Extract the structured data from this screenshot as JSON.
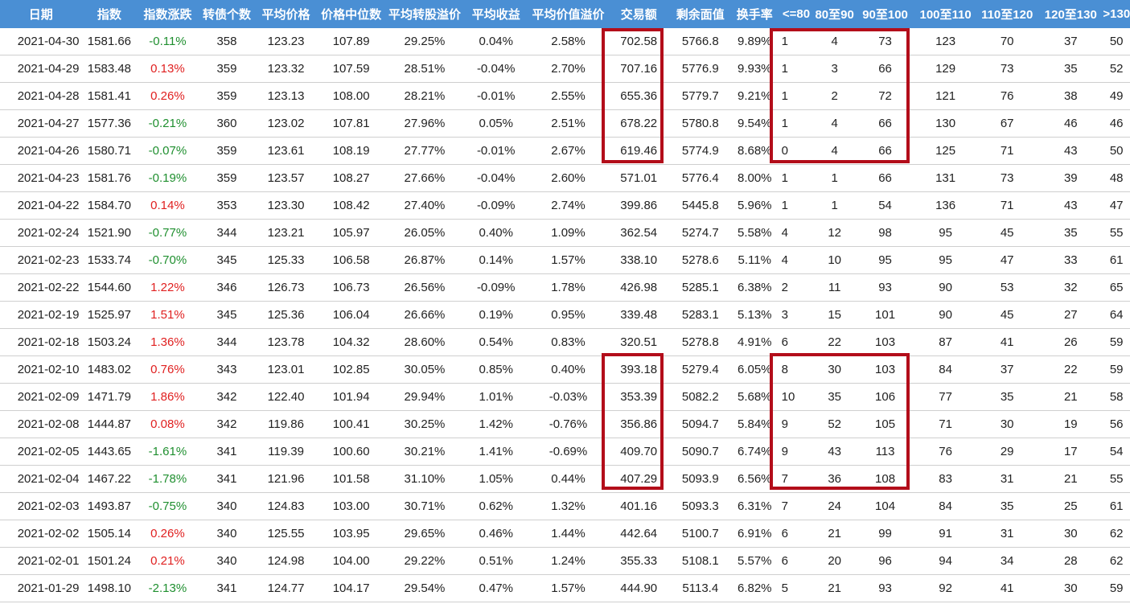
{
  "colors": {
    "header_bg": "#4a8fd4",
    "up": "#e02020",
    "down": "#1f8f2f",
    "highlight": "#b30d1a"
  },
  "headers": [
    "日期",
    "指数",
    "指数涨跌",
    "转债个数",
    "平均价格",
    "价格中位数",
    "平均转股溢价",
    "平均收益",
    "平均价值溢价",
    "交易额",
    "剩余面值",
    "换手率",
    "<=80",
    "80至90",
    "90至100",
    "100至110",
    "110至120",
    "120至130",
    ">130"
  ],
  "rows": [
    {
      "date": "2021-04-30",
      "index": "1581.66",
      "change": "-0.11%",
      "dir": "down",
      "count": "358",
      "avg_price": "123.23",
      "median": "107.89",
      "conv_premium": "29.25%",
      "avg_return": "0.04%",
      "value_premium": "2.58%",
      "volume": "702.58",
      "remaining": "5766.8",
      "turnover": "9.89%",
      "le80": "1",
      "b80_90": "4",
      "b90_100": "73",
      "b100_110": "123",
      "b110_120": "70",
      "b120_130": "37",
      "gt130": "50"
    },
    {
      "date": "2021-04-29",
      "index": "1583.48",
      "change": "0.13%",
      "dir": "up",
      "count": "359",
      "avg_price": "123.32",
      "median": "107.59",
      "conv_premium": "28.51%",
      "avg_return": "-0.04%",
      "value_premium": "2.70%",
      "volume": "707.16",
      "remaining": "5776.9",
      "turnover": "9.93%",
      "le80": "1",
      "b80_90": "3",
      "b90_100": "66",
      "b100_110": "129",
      "b110_120": "73",
      "b120_130": "35",
      "gt130": "52"
    },
    {
      "date": "2021-04-28",
      "index": "1581.41",
      "change": "0.26%",
      "dir": "up",
      "count": "359",
      "avg_price": "123.13",
      "median": "108.00",
      "conv_premium": "28.21%",
      "avg_return": "-0.01%",
      "value_premium": "2.55%",
      "volume": "655.36",
      "remaining": "5779.7",
      "turnover": "9.21%",
      "le80": "1",
      "b80_90": "2",
      "b90_100": "72",
      "b100_110": "121",
      "b110_120": "76",
      "b120_130": "38",
      "gt130": "49"
    },
    {
      "date": "2021-04-27",
      "index": "1577.36",
      "change": "-0.21%",
      "dir": "down",
      "count": "360",
      "avg_price": "123.02",
      "median": "107.81",
      "conv_premium": "27.96%",
      "avg_return": "0.05%",
      "value_premium": "2.51%",
      "volume": "678.22",
      "remaining": "5780.8",
      "turnover": "9.54%",
      "le80": "1",
      "b80_90": "4",
      "b90_100": "66",
      "b100_110": "130",
      "b110_120": "67",
      "b120_130": "46",
      "gt130": "46"
    },
    {
      "date": "2021-04-26",
      "index": "1580.71",
      "change": "-0.07%",
      "dir": "down",
      "count": "359",
      "avg_price": "123.61",
      "median": "108.19",
      "conv_premium": "27.77%",
      "avg_return": "-0.01%",
      "value_premium": "2.67%",
      "volume": "619.46",
      "remaining": "5774.9",
      "turnover": "8.68%",
      "le80": "0",
      "b80_90": "4",
      "b90_100": "66",
      "b100_110": "125",
      "b110_120": "71",
      "b120_130": "43",
      "gt130": "50"
    },
    {
      "date": "2021-04-23",
      "index": "1581.76",
      "change": "-0.19%",
      "dir": "down",
      "count": "359",
      "avg_price": "123.57",
      "median": "108.27",
      "conv_premium": "27.66%",
      "avg_return": "-0.04%",
      "value_premium": "2.60%",
      "volume": "571.01",
      "remaining": "5776.4",
      "turnover": "8.00%",
      "le80": "1",
      "b80_90": "1",
      "b90_100": "66",
      "b100_110": "131",
      "b110_120": "73",
      "b120_130": "39",
      "gt130": "48"
    },
    {
      "date": "2021-04-22",
      "index": "1584.70",
      "change": "0.14%",
      "dir": "up",
      "count": "353",
      "avg_price": "123.30",
      "median": "108.42",
      "conv_premium": "27.40%",
      "avg_return": "-0.09%",
      "value_premium": "2.74%",
      "volume": "399.86",
      "remaining": "5445.8",
      "turnover": "5.96%",
      "le80": "1",
      "b80_90": "1",
      "b90_100": "54",
      "b100_110": "136",
      "b110_120": "71",
      "b120_130": "43",
      "gt130": "47"
    },
    {
      "date": "2021-02-24",
      "index": "1521.90",
      "change": "-0.77%",
      "dir": "down",
      "count": "344",
      "avg_price": "123.21",
      "median": "105.97",
      "conv_premium": "26.05%",
      "avg_return": "0.40%",
      "value_premium": "1.09%",
      "volume": "362.54",
      "remaining": "5274.7",
      "turnover": "5.58%",
      "le80": "4",
      "b80_90": "12",
      "b90_100": "98",
      "b100_110": "95",
      "b110_120": "45",
      "b120_130": "35",
      "gt130": "55"
    },
    {
      "date": "2021-02-23",
      "index": "1533.74",
      "change": "-0.70%",
      "dir": "down",
      "count": "345",
      "avg_price": "125.33",
      "median": "106.58",
      "conv_premium": "26.87%",
      "avg_return": "0.14%",
      "value_premium": "1.57%",
      "volume": "338.10",
      "remaining": "5278.6",
      "turnover": "5.11%",
      "le80": "4",
      "b80_90": "10",
      "b90_100": "95",
      "b100_110": "95",
      "b110_120": "47",
      "b120_130": "33",
      "gt130": "61"
    },
    {
      "date": "2021-02-22",
      "index": "1544.60",
      "change": "1.22%",
      "dir": "up",
      "count": "346",
      "avg_price": "126.73",
      "median": "106.73",
      "conv_premium": "26.56%",
      "avg_return": "-0.09%",
      "value_premium": "1.78%",
      "volume": "426.98",
      "remaining": "5285.1",
      "turnover": "6.38%",
      "le80": "2",
      "b80_90": "11",
      "b90_100": "93",
      "b100_110": "90",
      "b110_120": "53",
      "b120_130": "32",
      "gt130": "65"
    },
    {
      "date": "2021-02-19",
      "index": "1525.97",
      "change": "1.51%",
      "dir": "up",
      "count": "345",
      "avg_price": "125.36",
      "median": "106.04",
      "conv_premium": "26.66%",
      "avg_return": "0.19%",
      "value_premium": "0.95%",
      "volume": "339.48",
      "remaining": "5283.1",
      "turnover": "5.13%",
      "le80": "3",
      "b80_90": "15",
      "b90_100": "101",
      "b100_110": "90",
      "b110_120": "45",
      "b120_130": "27",
      "gt130": "64"
    },
    {
      "date": "2021-02-18",
      "index": "1503.24",
      "change": "1.36%",
      "dir": "up",
      "count": "344",
      "avg_price": "123.78",
      "median": "104.32",
      "conv_premium": "28.60%",
      "avg_return": "0.54%",
      "value_premium": "0.83%",
      "volume": "320.51",
      "remaining": "5278.8",
      "turnover": "4.91%",
      "le80": "6",
      "b80_90": "22",
      "b90_100": "103",
      "b100_110": "87",
      "b110_120": "41",
      "b120_130": "26",
      "gt130": "59"
    },
    {
      "date": "2021-02-10",
      "index": "1483.02",
      "change": "0.76%",
      "dir": "up",
      "count": "343",
      "avg_price": "123.01",
      "median": "102.85",
      "conv_premium": "30.05%",
      "avg_return": "0.85%",
      "value_premium": "0.40%",
      "volume": "393.18",
      "remaining": "5279.4",
      "turnover": "6.05%",
      "le80": "8",
      "b80_90": "30",
      "b90_100": "103",
      "b100_110": "84",
      "b110_120": "37",
      "b120_130": "22",
      "gt130": "59"
    },
    {
      "date": "2021-02-09",
      "index": "1471.79",
      "change": "1.86%",
      "dir": "up",
      "count": "342",
      "avg_price": "122.40",
      "median": "101.94",
      "conv_premium": "29.94%",
      "avg_return": "1.01%",
      "value_premium": "-0.03%",
      "volume": "353.39",
      "remaining": "5082.2",
      "turnover": "5.68%",
      "le80": "10",
      "b80_90": "35",
      "b90_100": "106",
      "b100_110": "77",
      "b110_120": "35",
      "b120_130": "21",
      "gt130": "58"
    },
    {
      "date": "2021-02-08",
      "index": "1444.87",
      "change": "0.08%",
      "dir": "up",
      "count": "342",
      "avg_price": "119.86",
      "median": "100.41",
      "conv_premium": "30.25%",
      "avg_return": "1.42%",
      "value_premium": "-0.76%",
      "volume": "356.86",
      "remaining": "5094.7",
      "turnover": "5.84%",
      "le80": "9",
      "b80_90": "52",
      "b90_100": "105",
      "b100_110": "71",
      "b110_120": "30",
      "b120_130": "19",
      "gt130": "56"
    },
    {
      "date": "2021-02-05",
      "index": "1443.65",
      "change": "-1.61%",
      "dir": "down",
      "count": "341",
      "avg_price": "119.39",
      "median": "100.60",
      "conv_premium": "30.21%",
      "avg_return": "1.41%",
      "value_premium": "-0.69%",
      "volume": "409.70",
      "remaining": "5090.7",
      "turnover": "6.74%",
      "le80": "9",
      "b80_90": "43",
      "b90_100": "113",
      "b100_110": "76",
      "b110_120": "29",
      "b120_130": "17",
      "gt130": "54"
    },
    {
      "date": "2021-02-04",
      "index": "1467.22",
      "change": "-1.78%",
      "dir": "down",
      "count": "341",
      "avg_price": "121.96",
      "median": "101.58",
      "conv_premium": "31.10%",
      "avg_return": "1.05%",
      "value_premium": "0.44%",
      "volume": "407.29",
      "remaining": "5093.9",
      "turnover": "6.56%",
      "le80": "7",
      "b80_90": "36",
      "b90_100": "108",
      "b100_110": "83",
      "b110_120": "31",
      "b120_130": "21",
      "gt130": "55"
    },
    {
      "date": "2021-02-03",
      "index": "1493.87",
      "change": "-0.75%",
      "dir": "down",
      "count": "340",
      "avg_price": "124.83",
      "median": "103.00",
      "conv_premium": "30.71%",
      "avg_return": "0.62%",
      "value_premium": "1.32%",
      "volume": "401.16",
      "remaining": "5093.3",
      "turnover": "6.31%",
      "le80": "7",
      "b80_90": "24",
      "b90_100": "104",
      "b100_110": "84",
      "b110_120": "35",
      "b120_130": "25",
      "gt130": "61"
    },
    {
      "date": "2021-02-02",
      "index": "1505.14",
      "change": "0.26%",
      "dir": "up",
      "count": "340",
      "avg_price": "125.55",
      "median": "103.95",
      "conv_premium": "29.65%",
      "avg_return": "0.46%",
      "value_premium": "1.44%",
      "volume": "442.64",
      "remaining": "5100.7",
      "turnover": "6.91%",
      "le80": "6",
      "b80_90": "21",
      "b90_100": "99",
      "b100_110": "91",
      "b110_120": "31",
      "b120_130": "30",
      "gt130": "62"
    },
    {
      "date": "2021-02-01",
      "index": "1501.24",
      "change": "0.21%",
      "dir": "up",
      "count": "340",
      "avg_price": "124.98",
      "median": "104.00",
      "conv_premium": "29.22%",
      "avg_return": "0.51%",
      "value_premium": "1.24%",
      "volume": "355.33",
      "remaining": "5108.1",
      "turnover": "5.57%",
      "le80": "6",
      "b80_90": "20",
      "b90_100": "96",
      "b100_110": "94",
      "b110_120": "34",
      "b120_130": "28",
      "gt130": "62"
    },
    {
      "date": "2021-01-29",
      "index": "1498.10",
      "change": "-2.13%",
      "dir": "down",
      "count": "341",
      "avg_price": "124.77",
      "median": "104.17",
      "conv_premium": "29.54%",
      "avg_return": "0.47%",
      "value_premium": "1.57%",
      "volume": "444.90",
      "remaining": "5113.4",
      "turnover": "6.82%",
      "le80": "5",
      "b80_90": "21",
      "b90_100": "93",
      "b100_110": "92",
      "b110_120": "41",
      "b120_130": "30",
      "gt130": "59"
    }
  ]
}
